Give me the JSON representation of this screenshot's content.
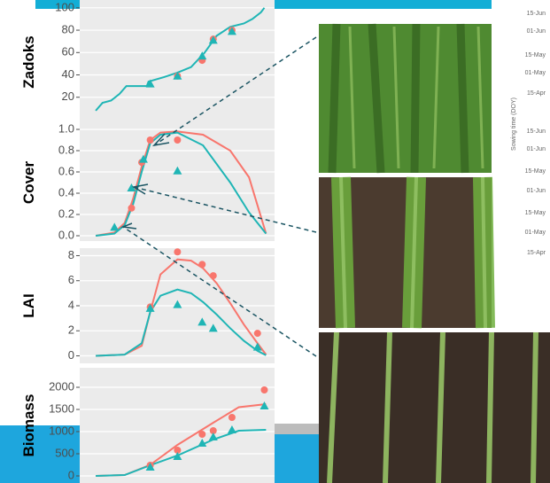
{
  "chart_data": [
    {
      "type": "line",
      "y_label": "Zadoks",
      "xlim": [
        -9.4,
        105
      ],
      "ylim": [
        -4,
        107
      ],
      "yticks": [
        20,
        40,
        60,
        80,
        100
      ],
      "series": [
        {
          "style": "line",
          "color": "#1fb5b5",
          "x": [
            0,
            4,
            9,
            14,
            18,
            22,
            30,
            31,
            40,
            48,
            56,
            64,
            71,
            79,
            87,
            92,
            97,
            99
          ],
          "values": [
            8,
            15,
            17,
            23,
            30,
            30,
            30,
            34,
            38,
            42,
            47,
            60,
            75,
            83,
            86,
            90,
            96,
            100
          ]
        },
        {
          "style": "circle",
          "color": "#f8766d",
          "x": [
            48,
            62.5,
            69,
            80
          ],
          "values": [
            39,
            53,
            72,
            80
          ]
        },
        {
          "style": "triangle",
          "color": "#1fb5b5",
          "x": [
            32,
            48,
            62.5,
            69,
            80
          ],
          "values": [
            32,
            39,
            57,
            71,
            79
          ]
        }
      ]
    },
    {
      "type": "line",
      "y_label": "Cover",
      "xlim": [
        -9.4,
        105
      ],
      "ylim": [
        -0.05,
        1.05
      ],
      "yticks": [
        {
          "value": 0,
          "label": "0.0"
        },
        0.2,
        0.4,
        0.6,
        0.8,
        {
          "value": 1,
          "label": "1.0"
        }
      ],
      "series": [
        {
          "style": "line",
          "color": "#f8766d",
          "x": [
            0,
            11,
            17,
            22,
            27,
            32,
            38,
            48,
            63,
            79,
            90,
            100
          ],
          "values": [
            0,
            0.03,
            0.12,
            0.35,
            0.65,
            0.9,
            0.97,
            0.98,
            0.95,
            0.8,
            0.55,
            0.02
          ]
        },
        {
          "style": "line",
          "color": "#1fb5b5",
          "x": [
            0,
            11,
            17,
            22,
            27,
            32,
            38,
            48,
            63,
            79,
            90,
            100
          ],
          "values": [
            0,
            0.02,
            0.1,
            0.3,
            0.6,
            0.87,
            0.95,
            0.97,
            0.85,
            0.5,
            0.22,
            0.02
          ]
        },
        {
          "style": "circle",
          "color": "#f8766d",
          "x": [
            21,
            27,
            32,
            48
          ],
          "values": [
            0.26,
            0.69,
            0.9,
            0.9
          ]
        },
        {
          "style": "triangle",
          "color": "#1fb5b5",
          "x": [
            11,
            21,
            28,
            48
          ],
          "values": [
            0.08,
            0.45,
            0.72,
            0.61
          ]
        }
      ]
    },
    {
      "type": "line",
      "y_label": "LAI",
      "xlim": [
        -9.4,
        105
      ],
      "ylim": [
        -0.6,
        8.6
      ],
      "yticks": [
        0,
        2,
        4,
        6,
        8
      ],
      "series": [
        {
          "style": "line",
          "color": "#f8766d",
          "x": [
            0,
            17,
            27,
            32,
            38,
            48,
            56,
            63,
            71,
            79,
            87,
            95,
            100
          ],
          "values": [
            0,
            0.1,
            0.8,
            3.5,
            6.5,
            7.7,
            7.6,
            7,
            5.8,
            4.2,
            2.5,
            1,
            0.1
          ]
        },
        {
          "style": "line",
          "color": "#1fb5b5",
          "x": [
            0,
            17,
            27,
            32,
            38,
            48,
            56,
            63,
            71,
            79,
            87,
            95,
            100
          ],
          "values": [
            0,
            0.1,
            1,
            3.5,
            4.8,
            5.3,
            5,
            4.3,
            3.3,
            2.2,
            1.2,
            0.4,
            0.05
          ]
        },
        {
          "style": "circle",
          "color": "#f8766d",
          "x": [
            32,
            48,
            62.5,
            69,
            95
          ],
          "values": [
            3.9,
            8.3,
            7.3,
            6.4,
            1.8
          ]
        },
        {
          "style": "triangle",
          "color": "#1fb5b5",
          "x": [
            32,
            48,
            62.5,
            69,
            95
          ],
          "values": [
            3.8,
            4.1,
            2.7,
            2.2,
            0.7
          ]
        }
      ]
    },
    {
      "type": "line",
      "y_label": "Biomass",
      "xlim": [
        -9.4,
        105
      ],
      "ylim": [
        -160,
        2440
      ],
      "yticks": [
        0,
        500,
        1000,
        1500,
        2000
      ],
      "series": [
        {
          "style": "line",
          "color": "#f8766d",
          "x": [
            0,
            17,
            32,
            48,
            69,
            84,
            100
          ],
          "values": [
            0,
            20,
            250,
            700,
            1200,
            1550,
            1620
          ]
        },
        {
          "style": "line",
          "color": "#1fb5b5",
          "x": [
            0,
            17,
            32,
            48,
            69,
            84,
            100
          ],
          "values": [
            0,
            20,
            240,
            460,
            820,
            1020,
            1040
          ]
        },
        {
          "style": "circle",
          "color": "#f8766d",
          "x": [
            32,
            48,
            62.5,
            69,
            80,
            99
          ],
          "values": [
            240,
            580,
            940,
            1020,
            1320,
            1940
          ]
        },
        {
          "style": "triangle",
          "color": "#1fb5b5",
          "x": [
            32,
            48,
            62.5,
            69,
            80,
            99
          ],
          "values": [
            200,
            440,
            740,
            880,
            1040,
            1580
          ]
        }
      ]
    }
  ],
  "background_chart": {
    "y_label": "Sowing time (DOY)",
    "ticks": [
      "15-Jun",
      "01-Jun",
      "15-May",
      "01-May",
      "15-Apr",
      "15-Jun",
      "01-Jun",
      "15-May",
      "01-Jun",
      "15-May",
      "01-May",
      "15-Apr"
    ]
  }
}
